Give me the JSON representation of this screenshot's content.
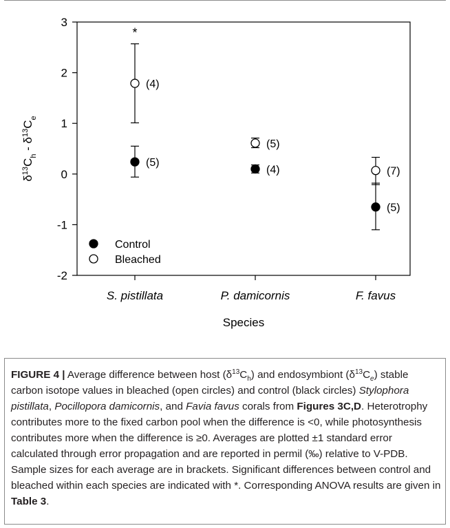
{
  "chart_data": {
    "type": "scatter",
    "categories": [
      "S. pistillata",
      "P. damicornis",
      "F. favus"
    ],
    "xlabel": "Species",
    "ylabel_html": "δ<tspan baseline-shift=\"super\" font-size=\"11\">13</tspan>C<tspan baseline-shift=\"sub\" font-size=\"11\">h</tspan> - δ<tspan baseline-shift=\"super\" font-size=\"11\">13</tspan>C<tspan baseline-shift=\"sub\" font-size=\"11\">e</tspan>",
    "ylim": [
      -2,
      3
    ],
    "yticks": [
      "-2",
      "-1",
      "0",
      "1",
      "2",
      "3"
    ],
    "series": [
      {
        "name": "Control",
        "marker": "filled",
        "values": [
          0.24,
          0.1,
          -0.65
        ],
        "error_low": [
          -0.06,
          0.02,
          -1.1
        ],
        "error_high": [
          0.55,
          0.18,
          -0.18
        ],
        "n_labels": [
          "(5)",
          "(4)",
          "(5)"
        ]
      },
      {
        "name": "Bleached",
        "marker": "open",
        "values": [
          1.79,
          0.61,
          0.07
        ],
        "error_low": [
          1.01,
          0.52,
          -0.21
        ],
        "error_high": [
          2.57,
          0.71,
          0.33
        ],
        "n_labels": [
          "(4)",
          "(5)",
          "(7)"
        ]
      }
    ],
    "annotations": [
      {
        "category": "S. pistillata",
        "text": "*"
      }
    ],
    "legend_position": "bottom-left",
    "grid": false
  },
  "caption": {
    "label": "FIGURE 4 |",
    "t1": " Average difference between host (δ",
    "s13a": "13",
    "t2": "C",
    "sub_h": "h",
    "t3": ") and endosymbiont (δ",
    "s13b": "13",
    "t4": "C",
    "sub_e": "e",
    "t5": ") stable carbon isotope values in bleached (open circles) and control (black circles) ",
    "sp1": "Stylophora pistillata",
    "t6": ", ",
    "sp2": "Pocillopora damicornis",
    "t7": ", and ",
    "sp3": "Favia favus",
    "t8": " corals from ",
    "fig_ref": "Figures 3C,D",
    "t9": ". Heterotrophy contributes more to the fixed carbon pool when the difference is <0, while photosynthesis contributes more when the difference is ≥0. Averages are plotted ±1 standard error calculated through error propagation and are reported in permil (‰) relative to V-PDB. Sample sizes for each average are in brackets. Significant differences between control and bleached within each species are indicated with *. Corresponding ANOVA results are given in ",
    "table_ref": "Table 3",
    "t10": "."
  }
}
